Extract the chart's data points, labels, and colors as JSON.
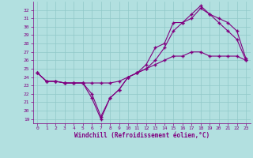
{
  "xlabel": "Windchill (Refroidissement éolien,°C)",
  "x_values": [
    0,
    1,
    2,
    3,
    4,
    5,
    6,
    7,
    8,
    9,
    10,
    11,
    12,
    13,
    14,
    15,
    16,
    17,
    18,
    19,
    20,
    21,
    22,
    23
  ],
  "line1": [
    24.5,
    23.5,
    23.5,
    23.3,
    23.3,
    23.3,
    21.5,
    19.0,
    21.5,
    22.5,
    24.0,
    24.5,
    25.5,
    27.5,
    28.0,
    30.5,
    30.5,
    31.0,
    32.2,
    31.5,
    30.5,
    29.5,
    28.5,
    26.0
  ],
  "line2": [
    24.5,
    23.5,
    23.5,
    23.3,
    23.3,
    23.3,
    22.0,
    19.3,
    21.5,
    22.5,
    24.0,
    24.5,
    25.0,
    26.0,
    27.5,
    29.5,
    30.5,
    31.5,
    32.5,
    31.5,
    31.0,
    30.5,
    29.5,
    26.2
  ],
  "line3": [
    24.5,
    23.5,
    23.5,
    23.3,
    23.3,
    23.3,
    23.3,
    23.3,
    23.3,
    23.5,
    24.0,
    24.5,
    25.0,
    25.5,
    26.0,
    26.5,
    26.5,
    27.0,
    27.0,
    26.5,
    26.5,
    26.5,
    26.5,
    26.0
  ],
  "line_color": "#800080",
  "bg_color": "#b2e0e0",
  "grid_color": "#90c8c8",
  "ylim_min": 18.5,
  "ylim_max": 33.0,
  "xlim_min": -0.5,
  "xlim_max": 23.5,
  "yticks": [
    19,
    20,
    21,
    22,
    23,
    24,
    25,
    26,
    27,
    28,
    29,
    30,
    31,
    32
  ],
  "xticks": [
    0,
    1,
    2,
    3,
    4,
    5,
    6,
    7,
    8,
    9,
    10,
    11,
    12,
    13,
    14,
    15,
    16,
    17,
    18,
    19,
    20,
    21,
    22,
    23
  ],
  "tick_fontsize": 4.5,
  "xlabel_fontsize": 5.5
}
